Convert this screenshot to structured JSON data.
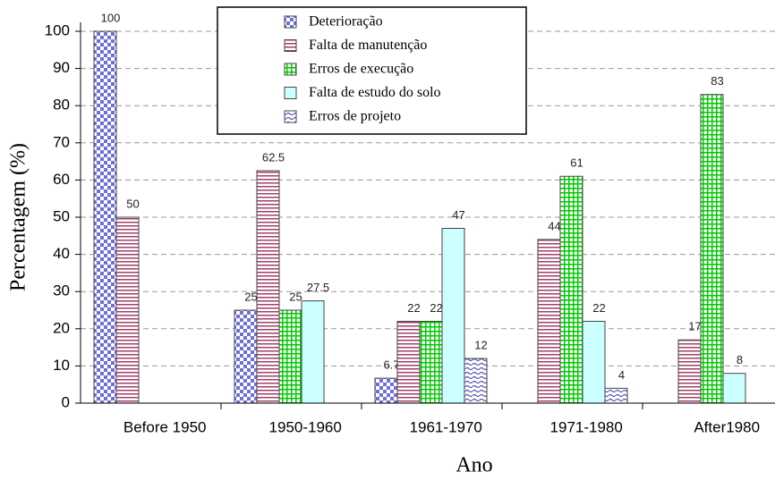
{
  "chart_data": {
    "type": "bar",
    "xlabel": "Ano",
    "ylabel": "Percentagem (%)",
    "categories": [
      "Before 1950",
      "1950-1960",
      "1961-1970",
      "1971-1980",
      "After1980"
    ],
    "series": [
      {
        "name": "Deterioração",
        "color": "#6f6fd8",
        "values": [
          100,
          25,
          6.7,
          null,
          null
        ]
      },
      {
        "name": "Falta de manutenção",
        "color": "#a0406a",
        "values": [
          50,
          62.5,
          22,
          44,
          17
        ]
      },
      {
        "name": "Erros de execução",
        "color": "#00c800",
        "values": [
          null,
          25,
          22,
          61,
          83
        ]
      },
      {
        "name": "Falta de estudo do solo",
        "color": "#ccffff",
        "values": [
          null,
          27.5,
          47,
          22,
          8
        ]
      },
      {
        "name": "Erros de projeto",
        "color": "#5050b0",
        "values": [
          null,
          null,
          12,
          4,
          null
        ]
      }
    ],
    "ylim": [
      0,
      100
    ],
    "yticks": [
      0,
      10,
      20,
      30,
      40,
      50,
      60,
      70,
      80,
      90,
      100
    ],
    "grid": true
  }
}
